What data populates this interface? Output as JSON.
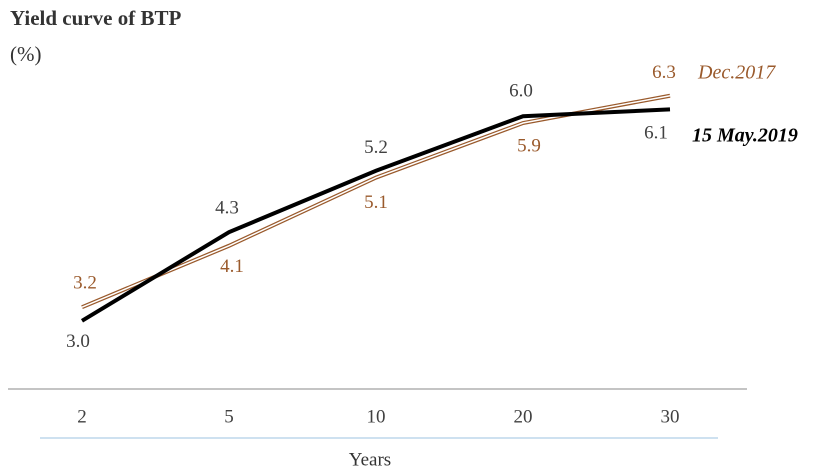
{
  "chart_data": {
    "type": "line",
    "title": "Yield curve of BTP",
    "subtitle": "(%)",
    "x_label": "Years",
    "categories": [
      "2",
      "5",
      "10",
      "20",
      "30"
    ],
    "ylim": [
      2,
      7
    ],
    "series": [
      {
        "name": "Dec.2017",
        "color": "#9a5a2c",
        "values": [
          3.2,
          4.1,
          5.1,
          5.9,
          6.3
        ],
        "value_labels": [
          "3.2",
          "4.1",
          "5.1",
          "5.9",
          "6.3"
        ]
      },
      {
        "name": "15 May.2019",
        "color": "#000000",
        "values": [
          3.0,
          4.3,
          5.2,
          6.0,
          6.1
        ],
        "value_labels": [
          "3.0",
          "4.3",
          "5.2",
          "6.0",
          "6.1"
        ]
      }
    ]
  }
}
